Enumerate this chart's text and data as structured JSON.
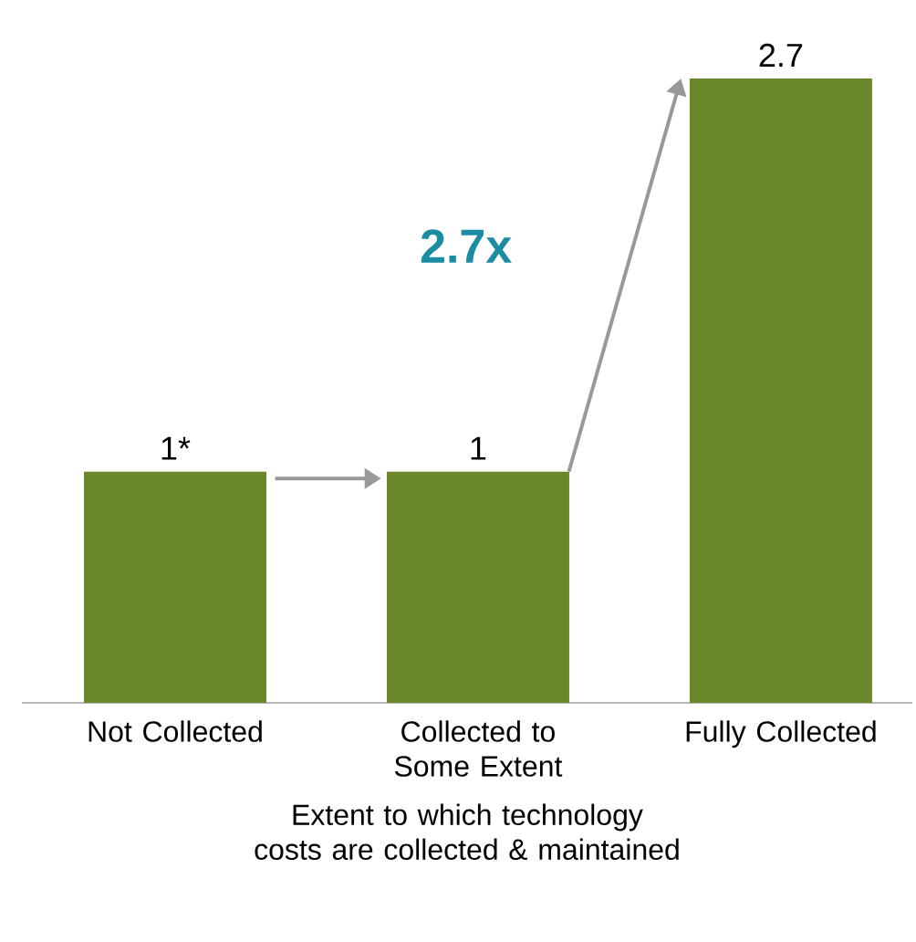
{
  "chart_data": {
    "type": "bar",
    "categories": [
      "Not Collected",
      "Collected to Some Extent",
      "Fully Collected"
    ],
    "values": [
      1,
      1,
      2.7
    ],
    "value_labels": [
      "1*",
      "1",
      "2.7"
    ],
    "color": "#6a8729",
    "xlabel": "Extent to which technology costs are collected & maintained",
    "annotations": [
      "2.7x"
    ]
  }
}
